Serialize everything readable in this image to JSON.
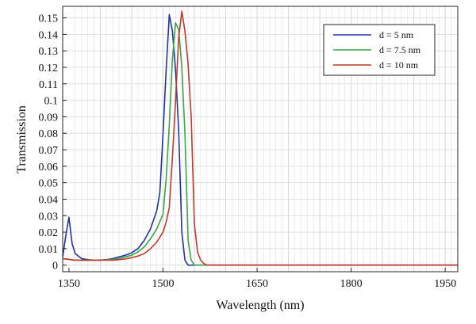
{
  "chart_data": {
    "type": "line",
    "title": "",
    "xlabel": "Wavelength (nm)",
    "ylabel": "Transmission",
    "xlim": [
      1340,
      1970
    ],
    "ylim": [
      -0.004,
      0.157
    ],
    "xticks": [
      1350,
      1500,
      1650,
      1800,
      1950
    ],
    "yticks": [
      0,
      0.01,
      0.02,
      0.03,
      0.04,
      0.05,
      0.06,
      0.07,
      0.08,
      0.09,
      0.1,
      0.11,
      0.12,
      0.13,
      0.14,
      0.15
    ],
    "grid": true,
    "legend_position": "top-right",
    "series": [
      {
        "name": "d = 5 nm",
        "color": "#2233a0",
        "x": [
          1340,
          1345,
          1350,
          1355,
          1360,
          1370,
          1380,
          1390,
          1400,
          1410,
          1420,
          1430,
          1440,
          1450,
          1460,
          1470,
          1480,
          1490,
          1495,
          1500,
          1505,
          1510,
          1515,
          1520,
          1525,
          1530,
          1535,
          1540,
          1545,
          1550,
          1560,
          1580,
          1600,
          1650,
          1800,
          1970
        ],
        "y": [
          0.005,
          0.018,
          0.029,
          0.013,
          0.007,
          0.004,
          0.0033,
          0.003,
          0.003,
          0.0033,
          0.004,
          0.005,
          0.006,
          0.0075,
          0.01,
          0.015,
          0.022,
          0.033,
          0.044,
          0.08,
          0.118,
          0.152,
          0.142,
          0.118,
          0.082,
          0.02,
          0.003,
          0.0,
          0.0,
          0.0,
          0.0,
          0.0,
          0.0,
          0.0,
          0.0,
          0.0
        ]
      },
      {
        "name": "d = 7.5 nm",
        "color": "#3aa645",
        "x": [
          1340,
          1350,
          1360,
          1370,
          1380,
          1390,
          1400,
          1410,
          1420,
          1430,
          1440,
          1450,
          1460,
          1470,
          1480,
          1490,
          1500,
          1505,
          1510,
          1515,
          1520,
          1525,
          1530,
          1535,
          1540,
          1545,
          1550,
          1560,
          1580,
          1600,
          1650,
          1800,
          1970
        ],
        "y": [
          0.004,
          0.0035,
          0.003,
          0.003,
          0.003,
          0.003,
          0.003,
          0.0032,
          0.0035,
          0.004,
          0.005,
          0.006,
          0.008,
          0.011,
          0.016,
          0.022,
          0.031,
          0.052,
          0.085,
          0.125,
          0.147,
          0.143,
          0.12,
          0.08,
          0.015,
          0.003,
          0.0,
          0.0,
          0.0,
          0.0,
          0.0,
          0.0,
          0.0
        ]
      },
      {
        "name": "d = 10 nm",
        "color": "#c0392b",
        "x": [
          1340,
          1350,
          1360,
          1370,
          1380,
          1390,
          1400,
          1410,
          1420,
          1430,
          1440,
          1450,
          1460,
          1470,
          1480,
          1490,
          1500,
          1505,
          1510,
          1515,
          1520,
          1525,
          1530,
          1535,
          1540,
          1545,
          1550,
          1555,
          1560,
          1565,
          1570,
          1580,
          1600,
          1650,
          1800,
          1970
        ],
        "y": [
          0.004,
          0.0035,
          0.003,
          0.003,
          0.003,
          0.003,
          0.003,
          0.003,
          0.003,
          0.0033,
          0.0038,
          0.0045,
          0.0055,
          0.007,
          0.01,
          0.014,
          0.02,
          0.026,
          0.035,
          0.065,
          0.1,
          0.138,
          0.154,
          0.142,
          0.122,
          0.09,
          0.025,
          0.008,
          0.003,
          0.001,
          0.0,
          0.0,
          0.0,
          0.0,
          0.0,
          0.0
        ]
      }
    ]
  }
}
